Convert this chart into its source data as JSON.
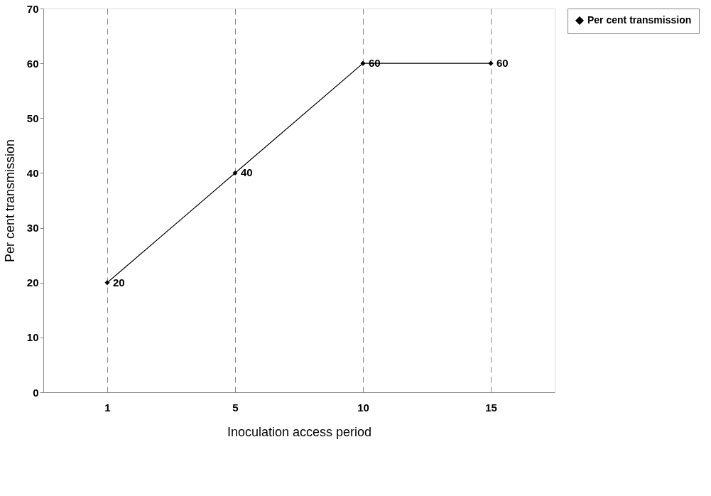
{
  "chart_data": {
    "type": "line",
    "xlabel": "Inoculation access period",
    "ylabel": "Per cent transmission",
    "categories": [
      "1",
      "5",
      "10",
      "15"
    ],
    "series": [
      {
        "name": "Per cent transmission",
        "color": "#000000",
        "values": [
          20,
          40,
          60,
          60
        ]
      }
    ],
    "ylim": [
      0,
      70
    ],
    "yticks": [
      0,
      10,
      20,
      30,
      40,
      50,
      60,
      70
    ],
    "grid": "x",
    "legend": "right",
    "marker": "diamond",
    "line_style": "solid",
    "data_labels": true
  }
}
